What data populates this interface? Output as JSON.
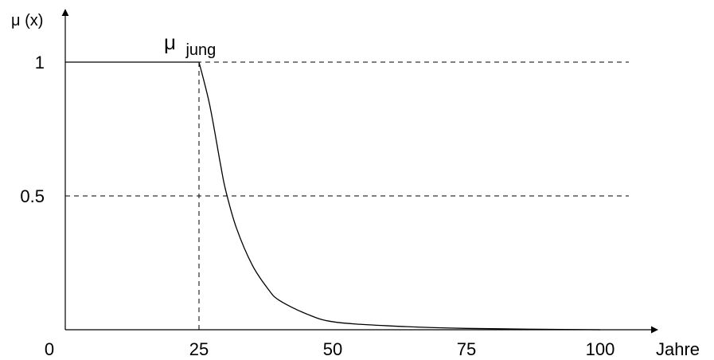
{
  "chart_data": {
    "type": "line",
    "y_axis_label": "μ (x)",
    "x_axis_label": "Jahre",
    "series": [
      {
        "name": "μ jung",
        "name_symbol": "μ",
        "name_subscript": "jung",
        "x": [
          0,
          25,
          27,
          29,
          30,
          32,
          35,
          38,
          40,
          45,
          50,
          60,
          75,
          100
        ],
        "y": [
          1,
          1,
          0.84,
          0.62,
          0.52,
          0.38,
          0.24,
          0.15,
          0.11,
          0.06,
          0.03,
          0.015,
          0.005,
          0.0
        ]
      }
    ],
    "x_ticks": [
      {
        "value": 0,
        "label": "0"
      },
      {
        "value": 25,
        "label": "25"
      },
      {
        "value": 50,
        "label": "50"
      },
      {
        "value": 75,
        "label": "75"
      },
      {
        "value": 100,
        "label": "100"
      }
    ],
    "y_ticks": [
      {
        "value": 1,
        "label": "1"
      },
      {
        "value": 0.5,
        "label": "0.5"
      }
    ],
    "reference_lines": {
      "horizontal": [
        1,
        0.5
      ],
      "vertical": [
        25
      ]
    },
    "xlim": [
      0,
      100
    ],
    "ylim": [
      0,
      1
    ],
    "grid": false,
    "legend": "none",
    "line_color": "#000000"
  }
}
